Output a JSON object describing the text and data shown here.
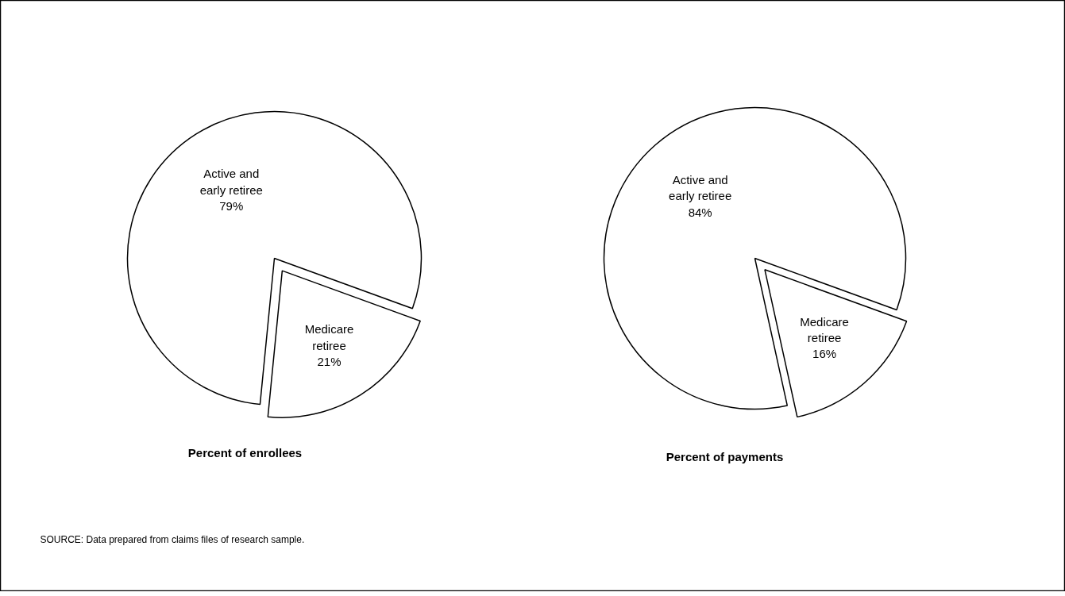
{
  "chart_data": [
    {
      "type": "pie",
      "categories": [
        "Active and early retiree",
        "Medicare retiree"
      ],
      "values": [
        79,
        21
      ],
      "value_labels": [
        "79%",
        "21%"
      ],
      "colors": [
        "#ffffff",
        "#ffffff"
      ],
      "xlabel": "Percent of enrollees",
      "annotations": [
        "SOURCE: Data prepared from claims files of research sample."
      ]
    },
    {
      "type": "pie",
      "categories": [
        "Active and early retiree",
        "Medicare retiree"
      ],
      "values": [
        84,
        16
      ],
      "value_labels": [
        "84%",
        "16%"
      ],
      "colors": [
        "#ffffff",
        "#ffffff"
      ],
      "xlabel": "Percent of payments"
    }
  ]
}
